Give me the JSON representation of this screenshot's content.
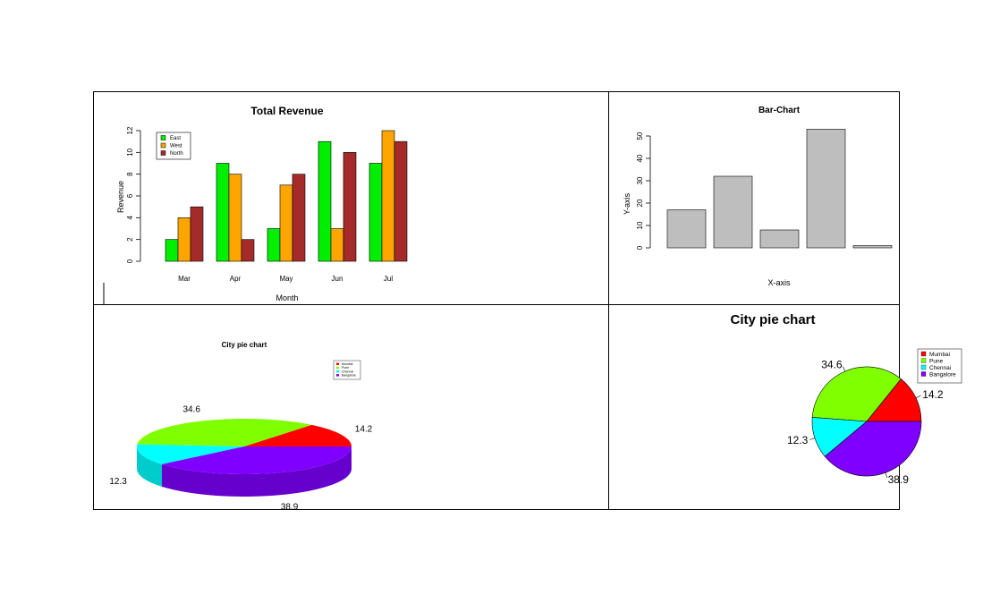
{
  "charts": [
    {
      "type": "bar",
      "title": "Total Revenue",
      "xlabel": "Month",
      "ylabel": "Revenue",
      "categories": [
        "Mar",
        "Apr",
        "May",
        "Jun",
        "Jul"
      ],
      "series": [
        {
          "name": "East",
          "color": "#00ee00",
          "values": [
            2,
            9,
            3,
            11,
            9
          ]
        },
        {
          "name": "West",
          "color": "#ffa500",
          "values": [
            4,
            8,
            7,
            3,
            12
          ]
        },
        {
          "name": "North",
          "color": "#a52a2a",
          "values": [
            5,
            2,
            8,
            10,
            11
          ]
        }
      ],
      "ylim": [
        0,
        12
      ],
      "yticks": [
        "0",
        "2",
        "4",
        "6",
        "8",
        "10",
        "12"
      ],
      "legend_position": "top-left"
    },
    {
      "type": "bar",
      "title": "Bar-Chart",
      "xlabel": "X-axis",
      "ylabel": "Y-axis",
      "values": [
        17,
        32,
        8,
        53,
        1
      ],
      "color": "#bebebe",
      "ylim": [
        0,
        50
      ],
      "yticks": [
        "0",
        "10",
        "20",
        "30",
        "40",
        "50"
      ]
    },
    {
      "type": "pie",
      "style": "3d",
      "title": "City pie chart",
      "labels": [
        "Mumbai",
        "Pune",
        "Chennai",
        "Bangalore"
      ],
      "values": [
        14.2,
        34.6,
        12.3,
        38.9
      ],
      "value_labels": [
        "14.2",
        "34.6",
        "12.3",
        "38.9"
      ],
      "colors": [
        "#ff0000",
        "#7fff00",
        "#00ffff",
        "#8000ff"
      ],
      "legend_position": "top-right"
    },
    {
      "type": "pie",
      "title": "City pie chart",
      "labels": [
        "Mumbai",
        "Pune",
        "Chennai",
        "Bangalore"
      ],
      "values": [
        14.2,
        34.6,
        12.3,
        38.9
      ],
      "value_labels": [
        "14.2",
        "34.6",
        "12.3",
        "38.9"
      ],
      "colors": [
        "#ff0000",
        "#7fff00",
        "#00ffff",
        "#8000ff"
      ],
      "legend_position": "top-right"
    }
  ]
}
